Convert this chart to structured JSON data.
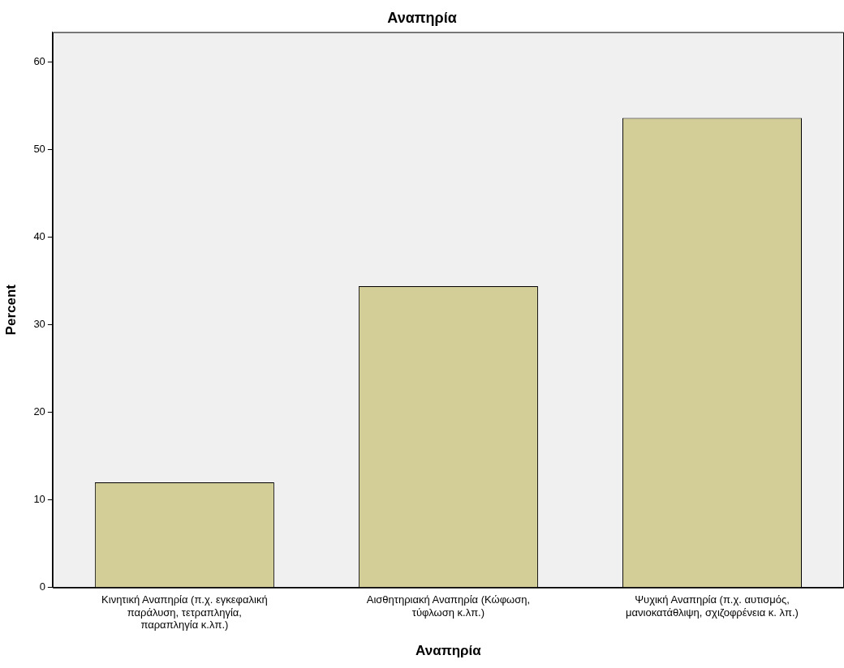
{
  "chart_data": {
    "type": "bar",
    "title": "Αναπηρία",
    "xlabel": "Αναπηρία",
    "ylabel": "Percent",
    "categories": [
      "Κινητική Αναπηρία (π.χ. εγκεφαλική παράλυση, τετραπληγία, παραπληγία κ.λπ.)",
      "Αισθητηριακή Αναπηρία (Κώφωση, τύφλωση κ.λπ.)",
      "Ψυχική Αναπηρία (π.χ. αυτισμός, μανιοκατάθλιψη, σχιζοφρένεια κ. λπ.)"
    ],
    "values": [
      12.0,
      34.4,
      53.6
    ],
    "color": "#d3ce97",
    "ylim": [
      0,
      63.4
    ],
    "yticks": [
      0,
      10,
      20,
      30,
      40,
      50,
      60
    ],
    "grid": false,
    "legend": false
  }
}
